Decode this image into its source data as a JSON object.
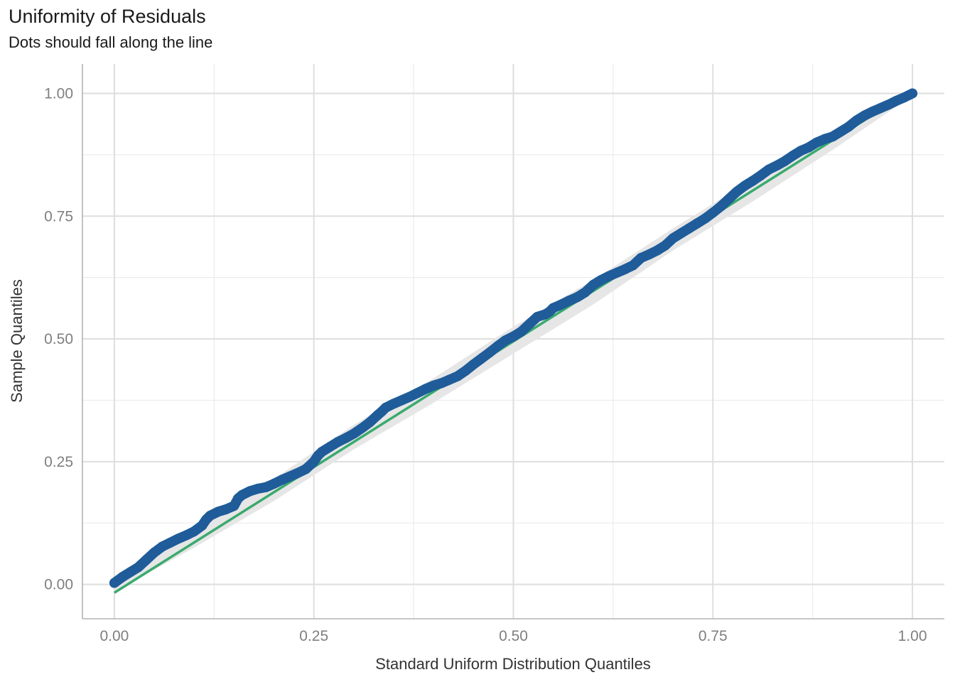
{
  "chart_data": {
    "type": "line",
    "title": "Uniformity of Residuals",
    "subtitle": "Dots should fall along the line",
    "xlabel": "Standard Uniform Distribution Quantiles",
    "ylabel": "Sample Quantiles",
    "xlim": [
      -0.04,
      1.04
    ],
    "ylim": [
      -0.07,
      1.06
    ],
    "x_ticks": [
      0.0,
      0.25,
      0.5,
      0.75,
      1.0
    ],
    "x_tick_labels": [
      "0.00",
      "0.25",
      "0.50",
      "0.75",
      "1.00"
    ],
    "y_ticks": [
      0.0,
      0.25,
      0.5,
      0.75,
      1.0
    ],
    "y_tick_labels": [
      "0.00",
      "0.25",
      "0.50",
      "0.75",
      "1.00"
    ],
    "grid": true,
    "reference_line": {
      "x": [
        0.0,
        1.0
      ],
      "y": [
        -0.017,
        1.007
      ],
      "color": "#3aaa6e"
    },
    "confidence_band": {
      "x": [
        0.0,
        0.1,
        0.2,
        0.3,
        0.4,
        0.5,
        0.6,
        0.7,
        0.8,
        0.9,
        1.0
      ],
      "lower": [
        -0.015,
        0.075,
        0.17,
        0.275,
        0.37,
        0.47,
        0.57,
        0.68,
        0.78,
        0.885,
        0.995
      ],
      "upper": [
        0.01,
        0.105,
        0.215,
        0.325,
        0.42,
        0.525,
        0.62,
        0.725,
        0.825,
        0.925,
        1.005
      ],
      "color": "#e6e6e6"
    },
    "series": [
      {
        "color": "#1f5c99",
        "x": [
          0.0,
          0.01,
          0.02,
          0.03,
          0.04,
          0.05,
          0.06,
          0.07,
          0.08,
          0.09,
          0.1,
          0.11,
          0.115,
          0.12,
          0.13,
          0.14,
          0.15,
          0.155,
          0.16,
          0.17,
          0.18,
          0.19,
          0.2,
          0.21,
          0.22,
          0.23,
          0.24,
          0.25,
          0.255,
          0.26,
          0.27,
          0.28,
          0.29,
          0.3,
          0.31,
          0.32,
          0.33,
          0.335,
          0.34,
          0.35,
          0.36,
          0.37,
          0.38,
          0.39,
          0.4,
          0.41,
          0.42,
          0.43,
          0.44,
          0.45,
          0.46,
          0.47,
          0.48,
          0.49,
          0.5,
          0.51,
          0.52,
          0.53,
          0.54,
          0.545,
          0.55,
          0.56,
          0.57,
          0.58,
          0.59,
          0.6,
          0.61,
          0.62,
          0.63,
          0.64,
          0.65,
          0.66,
          0.67,
          0.68,
          0.69,
          0.7,
          0.71,
          0.72,
          0.73,
          0.74,
          0.75,
          0.76,
          0.77,
          0.78,
          0.79,
          0.8,
          0.81,
          0.82,
          0.83,
          0.84,
          0.85,
          0.86,
          0.87,
          0.88,
          0.89,
          0.9,
          0.91,
          0.92,
          0.93,
          0.94,
          0.95,
          0.96,
          0.97,
          0.98,
          0.99,
          1.0
        ],
        "y": [
          0.003,
          0.015,
          0.025,
          0.035,
          0.05,
          0.065,
          0.077,
          0.085,
          0.093,
          0.1,
          0.108,
          0.12,
          0.132,
          0.14,
          0.148,
          0.153,
          0.16,
          0.175,
          0.182,
          0.19,
          0.195,
          0.198,
          0.205,
          0.213,
          0.22,
          0.227,
          0.235,
          0.25,
          0.262,
          0.27,
          0.28,
          0.29,
          0.298,
          0.307,
          0.318,
          0.33,
          0.345,
          0.352,
          0.36,
          0.368,
          0.375,
          0.382,
          0.39,
          0.398,
          0.405,
          0.41,
          0.417,
          0.424,
          0.435,
          0.448,
          0.46,
          0.472,
          0.485,
          0.497,
          0.505,
          0.515,
          0.53,
          0.545,
          0.55,
          0.555,
          0.563,
          0.57,
          0.578,
          0.585,
          0.595,
          0.61,
          0.62,
          0.628,
          0.635,
          0.642,
          0.65,
          0.665,
          0.672,
          0.68,
          0.69,
          0.705,
          0.715,
          0.725,
          0.735,
          0.745,
          0.757,
          0.77,
          0.785,
          0.8,
          0.812,
          0.822,
          0.833,
          0.845,
          0.853,
          0.862,
          0.873,
          0.883,
          0.89,
          0.9,
          0.907,
          0.912,
          0.922,
          0.932,
          0.945,
          0.955,
          0.963,
          0.97,
          0.977,
          0.985,
          0.992,
          1.0
        ]
      }
    ]
  }
}
